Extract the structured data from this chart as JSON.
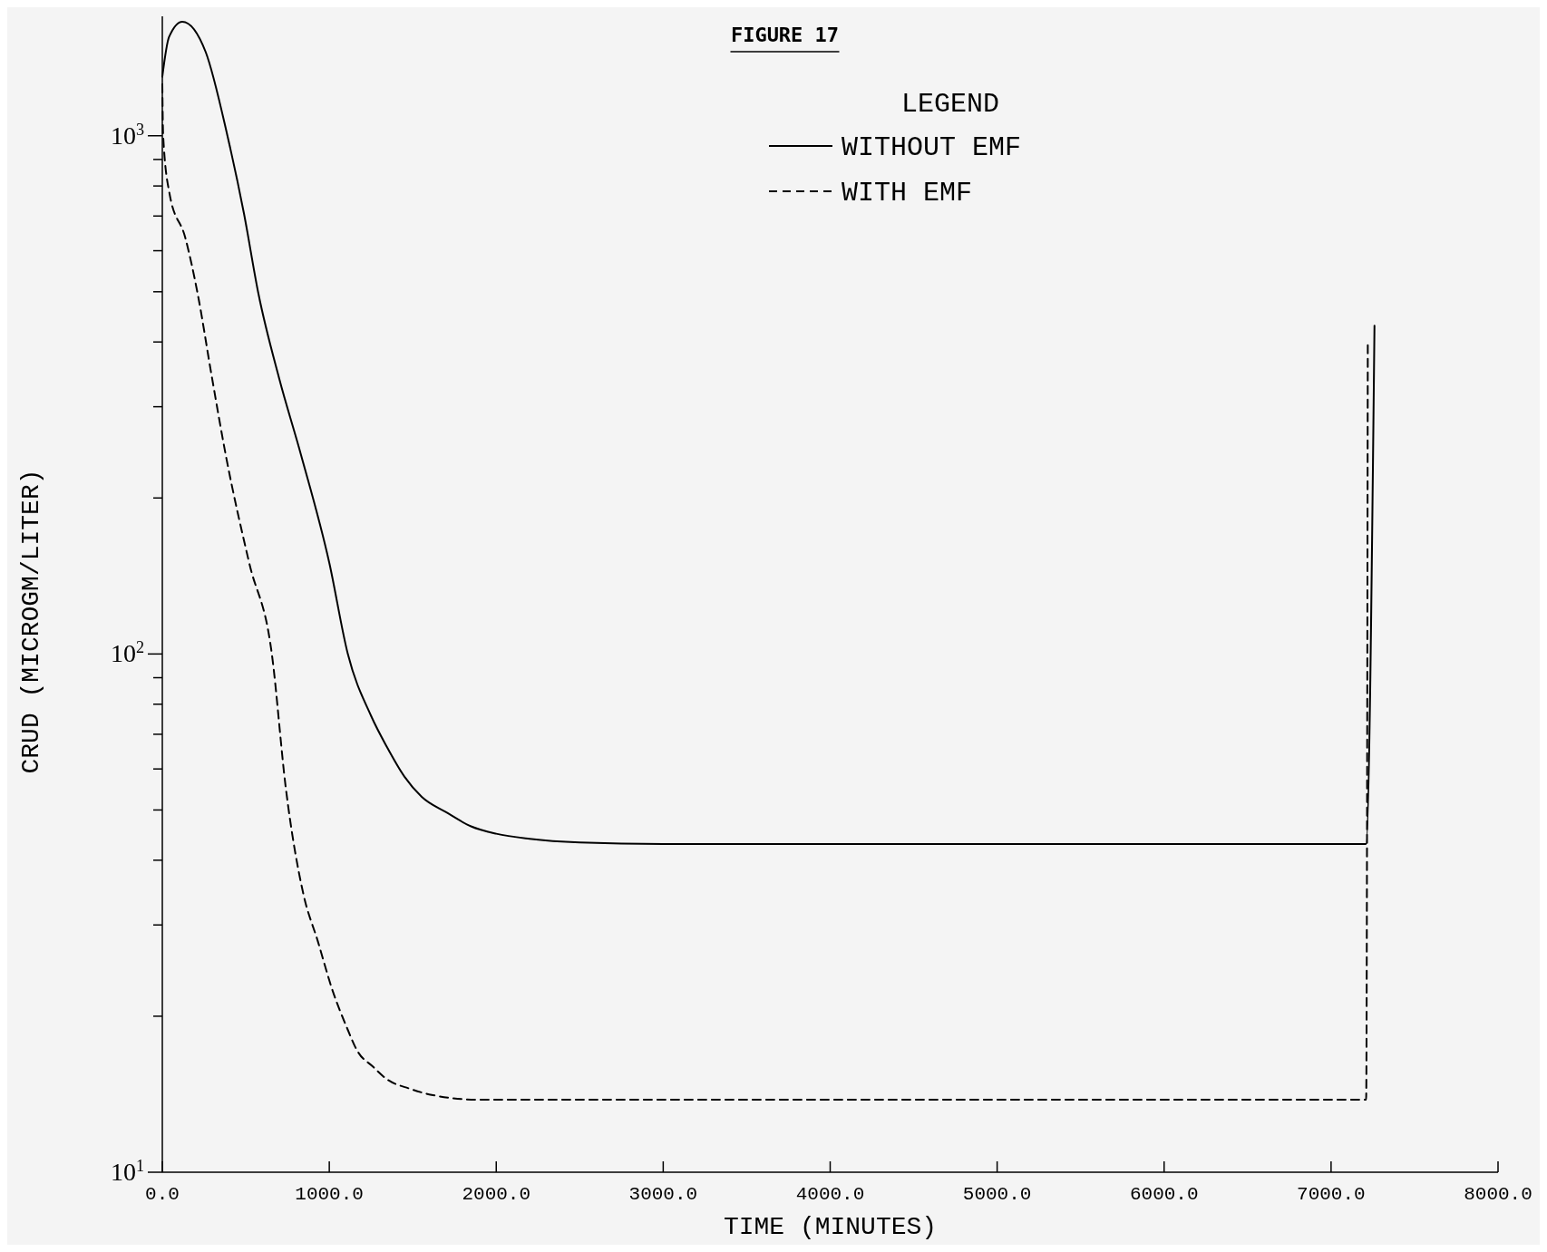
{
  "chart_data": {
    "type": "line",
    "title": "FIGURE 17",
    "xlabel": "TIME (MINUTES)",
    "ylabel": "CRUD (MICROGM/LITER)",
    "legend_title": "LEGEND",
    "legend": "top",
    "log": "y",
    "grid": false,
    "marker": "none",
    "xlim": [
      0,
      8000
    ],
    "xticks": [
      {
        "value": 0,
        "label": "0.0"
      },
      {
        "value": 1000,
        "label": "1000.0"
      },
      {
        "value": 2000,
        "label": "2000.0"
      },
      {
        "value": 3000,
        "label": "3000.0"
      },
      {
        "value": 4000,
        "label": "4000.0"
      },
      {
        "value": 5000,
        "label": "5000.0"
      },
      {
        "value": 6000,
        "label": "6000.0"
      },
      {
        "value": 7000,
        "label": "7000.0"
      },
      {
        "value": 8000,
        "label": "8000.0"
      }
    ],
    "ylim": [
      10,
      1700
    ],
    "yticks": [
      {
        "value": 10,
        "label": "10$^{1}$"
      },
      {
        "value": 20,
        "label": null
      },
      {
        "value": 30,
        "label": null
      },
      {
        "value": 40,
        "label": null
      },
      {
        "value": 50,
        "label": null
      },
      {
        "value": 60,
        "label": null
      },
      {
        "value": 70,
        "label": null
      },
      {
        "value": 80,
        "label": null
      },
      {
        "value": 90,
        "label": null
      },
      {
        "value": 100,
        "label": "10$^{2}$"
      },
      {
        "value": 200,
        "label": null
      },
      {
        "value": 300,
        "label": null
      },
      {
        "value": 400,
        "label": null
      },
      {
        "value": 500,
        "label": null
      },
      {
        "value": 600,
        "label": null
      },
      {
        "value": 700,
        "label": null
      },
      {
        "value": 800,
        "label": null
      },
      {
        "value": 900,
        "label": null
      },
      {
        "value": 1000,
        "label": "10$^{3}$"
      }
    ],
    "series": [
      {
        "name": "WITHOUT EMF",
        "color": "#000000",
        "line_style": "solid",
        "x": [
          0,
          40,
          120,
          260,
          390,
          489,
          576,
          700,
          831,
          1000,
          1111,
          1250,
          1347,
          1450,
          1554,
          1700,
          1849,
          2000,
          2200,
          2500,
          3000,
          4000,
          5000,
          6000,
          7000,
          7210,
          7260
        ],
        "values": [
          1300,
          1550,
          1660,
          1450,
          1000,
          708,
          495,
          340,
          242,
          150,
          100,
          76,
          66,
          58,
          53,
          49.5,
          46.5,
          45,
          44,
          43.3,
          43,
          43,
          43,
          43,
          43,
          43,
          430
        ]
      },
      {
        "name": "WITH EMF",
        "color": "#000000",
        "line_style": "dashed",
        "x": [
          0,
          5,
          43,
          138,
          212,
          295,
          380,
          520,
          656,
          740,
          845,
          930,
          1022,
          1100,
          1170,
          1260,
          1347,
          1480,
          1613,
          1900,
          2500,
          3000,
          4000,
          5000,
          6000,
          7000,
          7210,
          7220
        ],
        "values": [
          1257,
          1000,
          774,
          635,
          495,
          345,
          242,
          150,
          100,
          55,
          34.4,
          28,
          22.3,
          19.2,
          17.1,
          16,
          15.1,
          14.5,
          14.1,
          13.8,
          13.8,
          13.8,
          13.8,
          13.8,
          13.8,
          13.8,
          13.8,
          400
        ]
      }
    ]
  }
}
